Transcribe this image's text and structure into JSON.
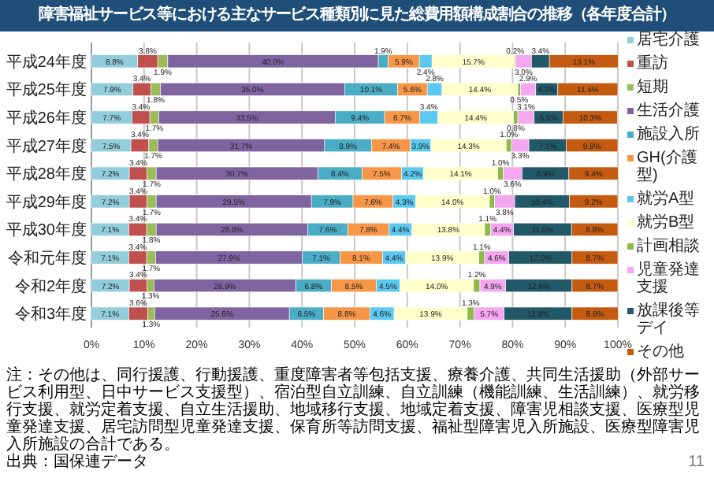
{
  "chart_data": {
    "type": "bar",
    "orientation": "horizontal",
    "stacked": true,
    "title": "障害福祉サービス等における主なサービス種類別に見た総費用額構成割合の推移（各年度合計）",
    "categories": [
      "平成24年度",
      "平成25年度",
      "平成26年度",
      "平成27年度",
      "平成28年度",
      "平成29年度",
      "平成30年度",
      "令和元年度",
      "令和2年度",
      "令和3年度"
    ],
    "series": [
      {
        "name": "居宅介護",
        "color": "#92cddc",
        "values": [
          8.8,
          7.9,
          7.7,
          7.5,
          7.2,
          7.2,
          7.1,
          7.1,
          7.2,
          7.1
        ],
        "value_labels": [
          "8.8%",
          "7.9%",
          "7.7%",
          "7.5%",
          "7.2%",
          "7.2%",
          "7.1%",
          "7.1%",
          "7.2%",
          "7.1%"
        ]
      },
      {
        "name": "重訪",
        "color": "#c0504d",
        "values": [
          3.8,
          3.4,
          3.4,
          3.4,
          3.4,
          3.4,
          3.4,
          3.4,
          3.4,
          3.6
        ],
        "value_labels": [
          "3.8%",
          "3.4%",
          "3.4%",
          "3.4%",
          "3.4%",
          "3.4%",
          "3.4%",
          "3.4%",
          "3.4%",
          "3.6%"
        ]
      },
      {
        "name": "短期",
        "color": "#9bbb59",
        "values": [
          1.9,
          1.8,
          1.7,
          1.7,
          1.7,
          1.7,
          1.8,
          1.7,
          1.3,
          1.3
        ],
        "value_labels": [
          "1.9%",
          "1.8%",
          "1.7%",
          "1.7%",
          "1.7%",
          "1.7%",
          "1.8%",
          "1.7%",
          "1.3%",
          "1.3%"
        ]
      },
      {
        "name": "生活介護",
        "color": "#8064a2",
        "values": [
          40.0,
          35.0,
          33.5,
          31.7,
          30.7,
          29.5,
          28.8,
          27.9,
          26.9,
          25.6
        ],
        "value_labels": [
          "40.0%",
          "35.0%",
          "33.5%",
          "31.7%",
          "30.7%",
          "29.5%",
          "28.8%",
          "27.9%",
          "26.9%",
          "25.6%"
        ]
      },
      {
        "name": "施設入所",
        "color": "#4bacc6",
        "values": [
          1.9,
          10.1,
          9.4,
          8.9,
          8.4,
          7.9,
          7.6,
          7.1,
          6.8,
          6.5
        ],
        "value_labels": [
          "1.9%",
          "10.1%",
          "9.4%",
          "8.9%",
          "8.4%",
          "7.9%",
          "7.6%",
          "7.1%",
          "6.8%",
          "6.5%"
        ]
      },
      {
        "name": "GH(介護型)",
        "color": "#f79646",
        "values": [
          5.9,
          5.6,
          6.7,
          7.4,
          7.5,
          7.6,
          7.8,
          8.1,
          8.5,
          8.8
        ],
        "value_labels": [
          "5.9%",
          "5.6%",
          "6.7%",
          "7.4%",
          "7.5%",
          "7.6%",
          "7.8%",
          "8.1%",
          "8.5%",
          "8.8%"
        ]
      },
      {
        "name": "就労A型",
        "color": "#5bc8f0",
        "values": [
          2.4,
          2.8,
          3.4,
          3.9,
          4.2,
          4.3,
          4.4,
          4.4,
          4.5,
          4.6
        ],
        "value_labels": [
          "2.4%",
          "2.8%",
          "3.4%",
          "3.9%",
          "4.2%",
          "4.3%",
          "4.4%",
          "4.4%",
          "4.5%",
          "4.6%"
        ]
      },
      {
        "name": "就労B型",
        "color": "#ffffcc",
        "values": [
          15.7,
          14.4,
          14.4,
          14.3,
          14.1,
          14.0,
          13.8,
          13.9,
          14.0,
          13.9
        ],
        "value_labels": [
          "15.7%",
          "14.4%",
          "14.4%",
          "14.3%",
          "14.1%",
          "14.0%",
          "13.8%",
          "13.9%",
          "14.0%",
          "13.9%"
        ]
      },
      {
        "name": "計画相談",
        "color": "#8db84a",
        "values": [
          0.2,
          0.5,
          0.8,
          1.0,
          1.0,
          1.0,
          1.1,
          1.1,
          1.2,
          1.3
        ],
        "value_labels": [
          "0.2%",
          "0.5%",
          "0.8%",
          "1.0%",
          "1.0%",
          "1.0%",
          "1.1%",
          "1.1%",
          "1.2%",
          "1.3%"
        ]
      },
      {
        "name": "児童発達支援",
        "color": "#f4a6f0",
        "values": [
          3.0,
          2.9,
          3.1,
          3.3,
          3.6,
          3.8,
          4.4,
          4.6,
          4.9,
          5.7
        ],
        "value_labels": [
          "3.0%",
          "2.9%",
          "3.1%",
          "3.3%",
          "3.6%",
          "3.8%",
          "4.4%",
          "4.6%",
          "4.9%",
          "5.7%"
        ]
      },
      {
        "name": "放課後等デイ",
        "color": "#215968",
        "values": [
          3.4,
          4.2,
          5.5,
          7.1,
          8.9,
          10.4,
          11.0,
          12.0,
          12.6,
          12.9
        ],
        "value_labels": [
          "3.4%",
          "4.2%",
          "5.5%",
          "7.1%",
          "8.9%",
          "10.4%",
          "11.0%",
          "12.0%",
          "12.6%",
          "12.9%"
        ]
      },
      {
        "name": "その他",
        "color": "#c55a11",
        "values": [
          13.1,
          11.4,
          10.3,
          9.8,
          9.4,
          9.2,
          8.8,
          8.7,
          8.7,
          8.8
        ],
        "value_labels": [
          "13.1%",
          "11.4%",
          "10.3%",
          "9.8%",
          "9.4%",
          "9.2%",
          "8.8%",
          "8.7%",
          "8.7%",
          "8.8%"
        ]
      }
    ],
    "xlim": [
      0,
      100
    ],
    "xticks": [
      {
        "value": 0,
        "label": "0%"
      },
      {
        "value": 10,
        "label": "10%"
      },
      {
        "value": 20,
        "label": "20%"
      },
      {
        "value": 30,
        "label": "30%"
      },
      {
        "value": 40,
        "label": "40%"
      },
      {
        "value": 50,
        "label": "50%"
      },
      {
        "value": 60,
        "label": "60%"
      },
      {
        "value": 70,
        "label": "70%"
      },
      {
        "value": 80,
        "label": "80%"
      },
      {
        "value": 90,
        "label": "90%"
      },
      {
        "value": 100,
        "label": "100%"
      }
    ],
    "grid": "x",
    "legend": "right",
    "annotations": [
      "注：その他は、同行援護、行動援護、重度障害者等包括支援、療養介護、共同生活援助（外部サービス利用型、日中サービス支援型）、宿泊型自立訓練、自立訓練（機能訓練、生活訓練）、就労移行支援、就労定着支援、自立生活援助、地域移行支援、地域定着支援、障害児相談支援、医療型児童発達支援、居宅訪問型児童発達支援、保育所等訪問支援、福祉型障害児入所施設、医療型障害児入所施設の合計である。",
      "出典：国保連データ",
      "11"
    ]
  }
}
